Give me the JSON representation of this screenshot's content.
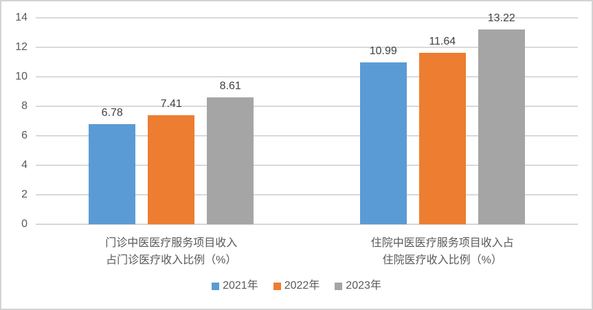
{
  "chart_data": {
    "type": "bar",
    "categories": [
      {
        "lines": [
          "门诊中医医疗服务项目收入",
          "占门诊医疗收入比例（%）"
        ]
      },
      {
        "lines": [
          "住院中医医疗服务项目收入占",
          "住院医疗收入比例（%）"
        ]
      }
    ],
    "series": [
      {
        "name": "2021年",
        "color": "#5B9BD5",
        "values": [
          6.78,
          10.99
        ]
      },
      {
        "name": "2022年",
        "color": "#ED7D31",
        "values": [
          7.41,
          11.64
        ]
      },
      {
        "name": "2023年",
        "color": "#A5A5A5",
        "values": [
          8.61,
          13.22
        ]
      }
    ],
    "data_labels": [
      [
        "6.78",
        "10.99"
      ],
      [
        "7.41",
        "11.64"
      ],
      [
        "8.61",
        "13.22"
      ]
    ],
    "title": "",
    "xlabel": "",
    "ylabel": "",
    "ylim": [
      0,
      14
    ],
    "yticks": [
      0,
      2,
      4,
      6,
      8,
      10,
      12,
      14
    ],
    "grid": "horizontal",
    "legend_position": "bottom",
    "colors": {
      "gridline": "#D9D9D9",
      "axis_text": "#595959",
      "data_label_text": "#404040",
      "frame_border": "#D3D3D3",
      "background": "#FFFFFF"
    }
  }
}
